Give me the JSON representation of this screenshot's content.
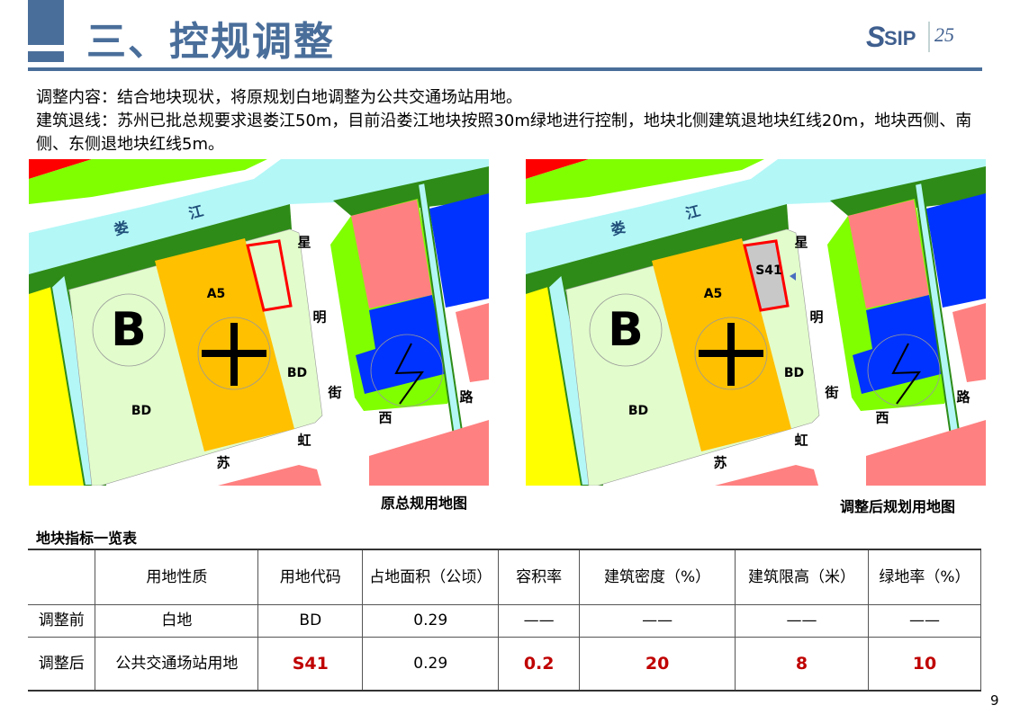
{
  "header": {
    "title": "三、控规调整",
    "logo_text": "SIP",
    "logo_mark": "25"
  },
  "intro": {
    "line1": "调整内容：结合地块现状，将原规划白地调整为公共交通场站用地。",
    "line2": "建筑退线：苏州已批总规要求退娄江50m，目前沿娄江地块按照30m绿地进行控制，地块北侧建筑退地块红线20m，地块西侧、南侧、东侧退地块红线5m。"
  },
  "maps": {
    "labels": {
      "lou": "娄",
      "jiang": "江",
      "xing": "星",
      "ming": "明",
      "jie": "街",
      "xi": "西",
      "lu": "路",
      "hong": "虹",
      "su": "苏",
      "a5": "A5",
      "bd1": "BD",
      "bd2": "BD",
      "b": "B",
      "s41": "S41"
    },
    "left_caption": "原总规用地图",
    "right_caption": "调整后规划用地图",
    "colors": {
      "river": "#b3f7f7",
      "dark_green": "#2e8b17",
      "light_green": "#80ff00",
      "pale_green": "#e2fccc",
      "orange": "#ffc000",
      "yellow": "#ffff00",
      "pink": "#ff8080",
      "blue": "#0033ff",
      "red": "#ff0000",
      "grey": "#c8c8c8"
    }
  },
  "table": {
    "title": "地块指标一览表",
    "headers": [
      "",
      "用地性质",
      "用地代码",
      "占地面积（公顷）",
      "容积率",
      "建筑密度（%）",
      "建筑限高（米）",
      "绿地率（%）"
    ],
    "rows": [
      [
        "调整前",
        "白地",
        "BD",
        "0.29",
        "——",
        "——",
        "——",
        "——"
      ],
      [
        "调整后",
        "公共交通场站用地",
        "S41",
        "0.29",
        "0.2",
        "20",
        "8",
        "10"
      ]
    ]
  },
  "page_number": "9"
}
